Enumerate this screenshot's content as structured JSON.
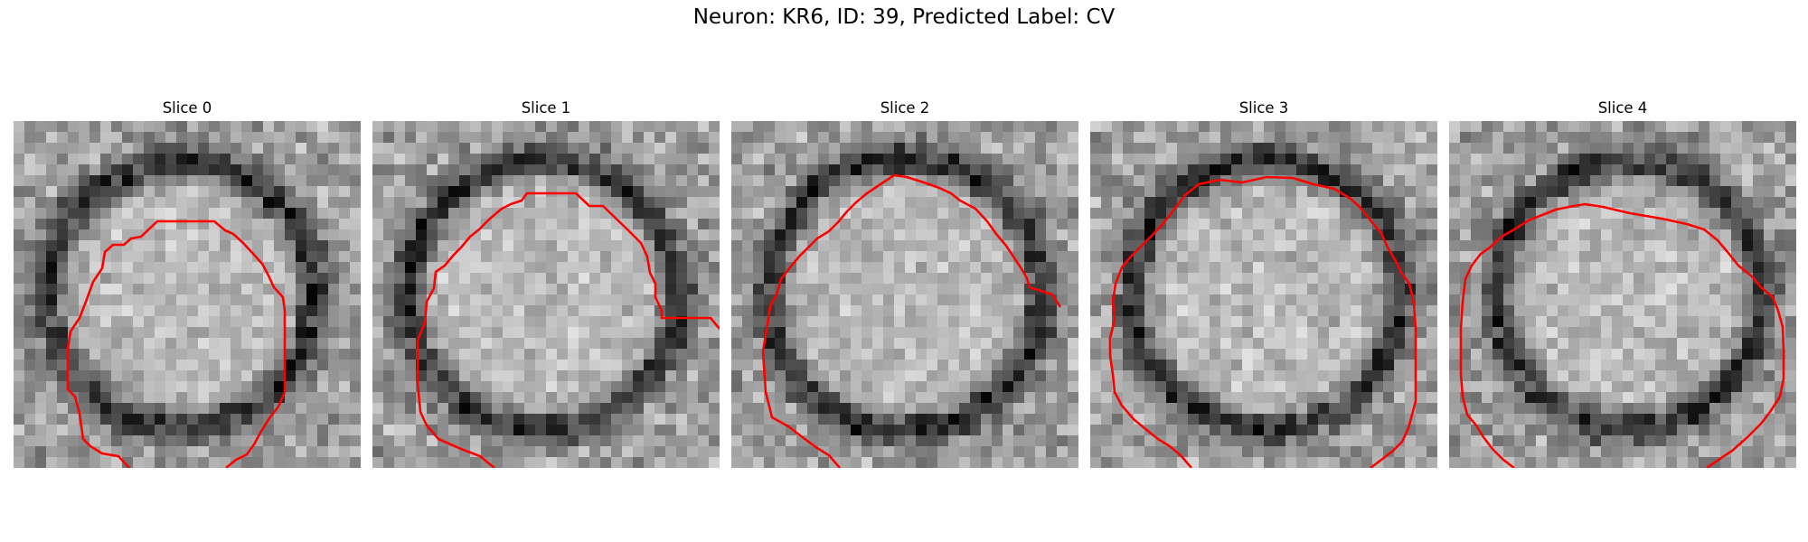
{
  "figure": {
    "title": "Neuron: KR6, ID: 39, Predicted Label: CV"
  },
  "colors": {
    "contour": "#ff0000",
    "background": "#ffffff"
  },
  "slices": [
    {
      "title": "Slice 0"
    },
    {
      "title": "Slice 1"
    },
    {
      "title": "Slice 2"
    },
    {
      "title": "Slice 3"
    },
    {
      "title": "Slice 4"
    }
  ]
}
